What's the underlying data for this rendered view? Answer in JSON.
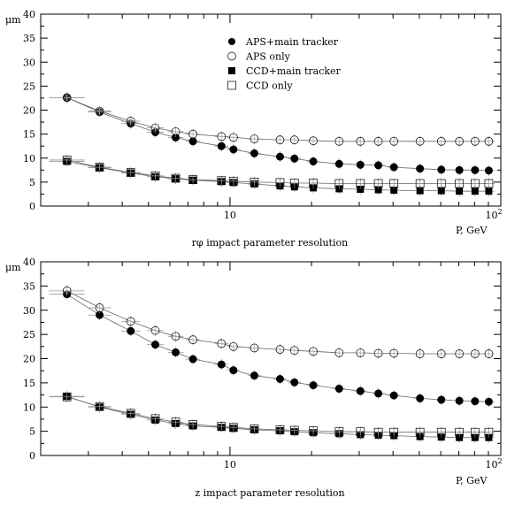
{
  "chart_data": [
    {
      "type": "scatter",
      "caption": "rφ impact parameter resolution",
      "ylabel": "μm",
      "xlabel": "P, GeV",
      "xscale": "log",
      "xlim": [
        2,
        100
      ],
      "ylim": [
        0,
        40
      ],
      "x_tick_labels": [
        "10",
        "10²"
      ],
      "y_ticks": [
        0,
        5,
        10,
        15,
        20,
        25,
        30,
        35,
        40
      ],
      "grid": false,
      "legend_position": "top-center",
      "x": [
        2.5,
        3.3,
        4.3,
        5.3,
        6.3,
        7.3,
        9.3,
        10.3,
        12.3,
        15.3,
        17.3,
        20.3,
        25.3,
        30.3,
        35.3,
        40.3,
        50.3,
        60.3,
        70.3,
        80.3,
        90.3
      ],
      "series": [
        {
          "name": "APS+main tracker",
          "marker": "filled-circle",
          "values": [
            22.6,
            19.6,
            17.2,
            15.4,
            14.3,
            13.5,
            12.5,
            11.8,
            11.0,
            10.3,
            9.9,
            9.3,
            8.8,
            8.6,
            8.5,
            8.1,
            7.8,
            7.6,
            7.5,
            7.5,
            7.4
          ]
        },
        {
          "name": "APS only",
          "marker": "open-circle",
          "values": [
            22.6,
            19.8,
            17.7,
            16.3,
            15.5,
            15.0,
            14.5,
            14.3,
            14.0,
            13.8,
            13.8,
            13.6,
            13.5,
            13.5,
            13.5,
            13.5,
            13.5,
            13.5,
            13.5,
            13.5,
            13.5
          ]
        },
        {
          "name": "CCD+main tracker",
          "marker": "filled-square",
          "values": [
            9.3,
            8.0,
            6.9,
            6.1,
            5.7,
            5.4,
            5.1,
            4.9,
            4.6,
            4.2,
            4.0,
            3.8,
            3.6,
            3.5,
            3.4,
            3.3,
            3.2,
            3.2,
            3.1,
            3.1,
            3.1
          ]
        },
        {
          "name": "CCD only",
          "marker": "open-square",
          "values": [
            9.6,
            8.1,
            7.0,
            6.3,
            5.8,
            5.5,
            5.3,
            5.2,
            5.0,
            4.9,
            4.8,
            4.8,
            4.7,
            4.7,
            4.7,
            4.7,
            4.7,
            4.7,
            4.7,
            4.7,
            4.7
          ]
        }
      ]
    },
    {
      "type": "scatter",
      "caption": "z impact parameter resolution",
      "ylabel": "μm",
      "xlabel": "P, GeV",
      "xscale": "log",
      "xlim": [
        2,
        100
      ],
      "ylim": [
        0,
        40
      ],
      "x_tick_labels": [
        "10",
        "10²"
      ],
      "y_ticks": [
        0,
        5,
        10,
        15,
        20,
        25,
        30,
        35,
        40
      ],
      "grid": false,
      "x": [
        2.5,
        3.3,
        4.3,
        5.3,
        6.3,
        7.3,
        9.3,
        10.3,
        12.3,
        15.3,
        17.3,
        20.3,
        25.3,
        30.3,
        35.3,
        40.3,
        50.3,
        60.3,
        70.3,
        80.3,
        90.3
      ],
      "series": [
        {
          "name": "APS+main tracker",
          "marker": "filled-circle",
          "values": [
            33.3,
            29.0,
            25.7,
            22.9,
            21.3,
            19.9,
            18.8,
            17.6,
            16.5,
            15.8,
            15.1,
            14.5,
            13.8,
            13.3,
            12.8,
            12.4,
            11.8,
            11.5,
            11.3,
            11.2,
            11.1
          ]
        },
        {
          "name": "APS only",
          "marker": "open-circle",
          "values": [
            34.0,
            30.5,
            27.7,
            25.8,
            24.6,
            23.9,
            23.1,
            22.5,
            22.2,
            21.9,
            21.7,
            21.5,
            21.2,
            21.2,
            21.1,
            21.1,
            21.0,
            21.0,
            21.0,
            21.0,
            21.0
          ]
        },
        {
          "name": "CCD+main tracker",
          "marker": "filled-square",
          "values": [
            12.2,
            10.0,
            8.5,
            7.3,
            6.6,
            6.1,
            5.8,
            5.6,
            5.3,
            5.1,
            4.9,
            4.7,
            4.5,
            4.3,
            4.2,
            4.1,
            3.9,
            3.8,
            3.7,
            3.7,
            3.7
          ]
        },
        {
          "name": "CCD only",
          "marker": "open-square",
          "values": [
            12.1,
            10.1,
            8.7,
            7.6,
            6.9,
            6.4,
            6.0,
            5.8,
            5.5,
            5.3,
            5.2,
            5.1,
            4.9,
            4.9,
            4.8,
            4.8,
            4.8,
            4.8,
            4.8,
            4.8,
            4.8
          ]
        }
      ]
    }
  ]
}
